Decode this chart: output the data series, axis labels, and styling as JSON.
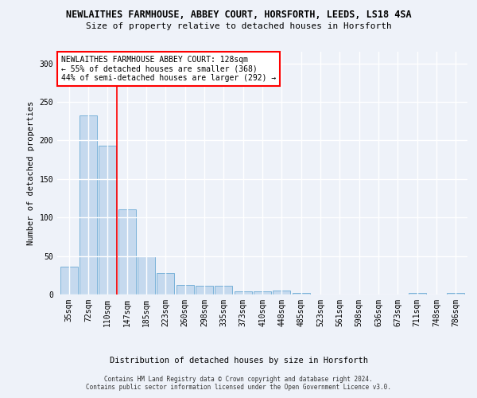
{
  "title1": "NEWLAITHES FARMHOUSE, ABBEY COURT, HORSFORTH, LEEDS, LS18 4SA",
  "title2": "Size of property relative to detached houses in Horsforth",
  "xlabel": "Distribution of detached houses by size in Horsforth",
  "ylabel": "Number of detached properties",
  "footer1": "Contains HM Land Registry data © Crown copyright and database right 2024.",
  "footer2": "Contains public sector information licensed under the Open Government Licence v3.0.",
  "bar_labels": [
    "35sqm",
    "72sqm",
    "110sqm",
    "147sqm",
    "185sqm",
    "223sqm",
    "260sqm",
    "298sqm",
    "335sqm",
    "373sqm",
    "410sqm",
    "448sqm",
    "485sqm",
    "523sqm",
    "561sqm",
    "598sqm",
    "636sqm",
    "673sqm",
    "711sqm",
    "748sqm",
    "786sqm"
  ],
  "bar_values": [
    36,
    232,
    193,
    111,
    50,
    28,
    12,
    11,
    11,
    4,
    4,
    5,
    2,
    0,
    0,
    0,
    0,
    0,
    2,
    0,
    2
  ],
  "bar_color": "#c5d9ee",
  "bar_edge_color": "#6aaad4",
  "vline_x": 2.5,
  "vline_color": "red",
  "annotation_text": "NEWLAITHES FARMHOUSE ABBEY COURT: 128sqm\n← 55% of detached houses are smaller (368)\n44% of semi-detached houses are larger (292) →",
  "annotation_box_color": "white",
  "annotation_box_edge": "red",
  "ylim": [
    0,
    315
  ],
  "yticks": [
    0,
    50,
    100,
    150,
    200,
    250,
    300
  ],
  "background_color": "#eef2f9",
  "grid_color": "white",
  "title1_fontsize": 8.5,
  "title2_fontsize": 8,
  "axis_label_fontsize": 7.5,
  "tick_fontsize": 7,
  "annotation_fontsize": 7,
  "footer_fontsize": 5.5
}
